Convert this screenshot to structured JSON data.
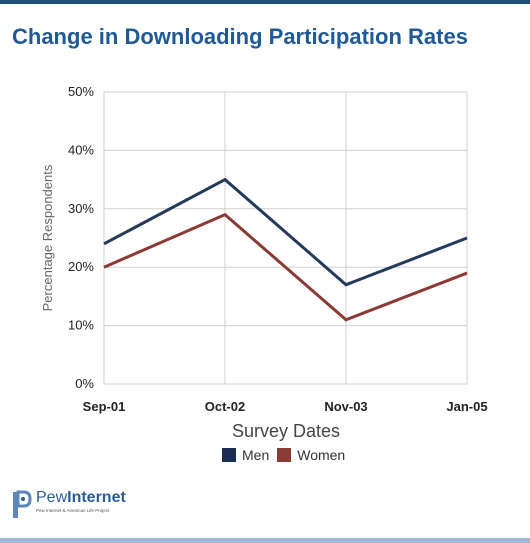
{
  "title": "Change in Downloading Participation Rates",
  "chart_data": {
    "type": "line",
    "categories": [
      "Sep-01",
      "Oct-02",
      "Nov-03",
      "Jan-05"
    ],
    "series": [
      {
        "name": "Men",
        "values": [
          24,
          35,
          17,
          25
        ],
        "color": "#243a5a"
      },
      {
        "name": "Women",
        "values": [
          20,
          29,
          11,
          19
        ],
        "color": "#8b3a35"
      }
    ],
    "xlabel": "Survey Dates",
    "ylabel": "Percentage Respondents",
    "ylim": [
      0,
      50
    ],
    "yticks": [
      "0%",
      "10%",
      "20%",
      "30%",
      "40%",
      "50%"
    ],
    "grid": true,
    "legend_position": "bottom",
    "legend_colors": {
      "Men": "#1a2d52",
      "Women": "#8b3a35"
    }
  },
  "logo": {
    "name_light": "Pew",
    "name_bold": "Internet",
    "subtitle": "Pew Internet & American Life Project"
  }
}
